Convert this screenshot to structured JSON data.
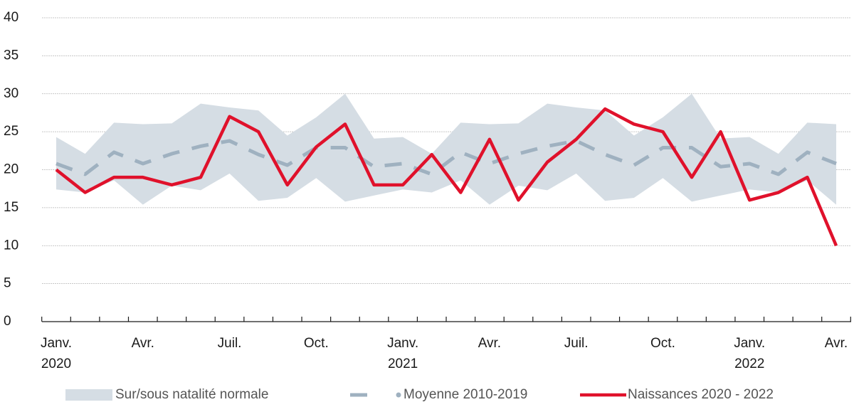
{
  "chart_data": {
    "type": "line",
    "categories": [
      "Janv.\n2020",
      null,
      null,
      "Avr.",
      null,
      null,
      "Juil.",
      null,
      null,
      "Oct.",
      null,
      null,
      "Janv.\n2021",
      null,
      null,
      "Avr.",
      null,
      null,
      "Juil.",
      null,
      null,
      "Oct.",
      null,
      null,
      "Janv.\n2022",
      null,
      null,
      "Avr."
    ],
    "series": [
      {
        "name": "Sur/sous natalité normale",
        "kind": "band",
        "color": "#d5dde4",
        "upper": [
          24.3,
          22.1,
          26.2,
          26.0,
          26.1,
          28.7,
          28.2,
          27.8,
          24.5,
          26.9,
          30.0,
          24.1,
          24.3,
          22.1,
          26.2,
          26.0,
          26.1,
          28.7,
          28.2,
          27.8,
          24.5,
          26.9,
          30.0,
          24.1,
          24.3,
          22.1,
          26.2,
          26.0
        ],
        "lower": [
          17.4,
          17.0,
          18.6,
          15.4,
          17.9,
          17.3,
          19.5,
          15.9,
          16.3,
          18.9,
          15.8,
          16.6,
          17.4,
          17.0,
          18.6,
          15.4,
          17.9,
          17.3,
          19.5,
          15.9,
          16.3,
          18.9,
          15.8,
          16.6,
          17.4,
          17.0,
          18.6,
          15.4
        ]
      },
      {
        "name": "Moyenne 2010-2019",
        "kind": "dashed",
        "color": "#9fb1c0",
        "values": [
          20.8,
          19.4,
          22.3,
          20.8,
          22.1,
          23.1,
          23.8,
          22.0,
          20.6,
          22.9,
          22.9,
          20.4,
          20.8,
          19.4,
          22.3,
          20.8,
          22.1,
          23.1,
          23.8,
          22.0,
          20.6,
          22.9,
          22.9,
          20.4,
          20.8,
          19.4,
          22.3,
          20.8
        ]
      },
      {
        "name": "Naissances 2020 - 2022",
        "kind": "line",
        "color": "#e0112b",
        "values": [
          20,
          17,
          19,
          19,
          18,
          19,
          27,
          25,
          18,
          23,
          26,
          18,
          18,
          22,
          17,
          24,
          16,
          21,
          24,
          28,
          26,
          25,
          19,
          25,
          16,
          17,
          19,
          10
        ]
      }
    ],
    "ylim": [
      0,
      40
    ],
    "yticks": [
      0,
      5,
      10,
      15,
      20,
      25,
      30,
      35,
      40
    ],
    "grid": true,
    "legend": "bottom"
  }
}
